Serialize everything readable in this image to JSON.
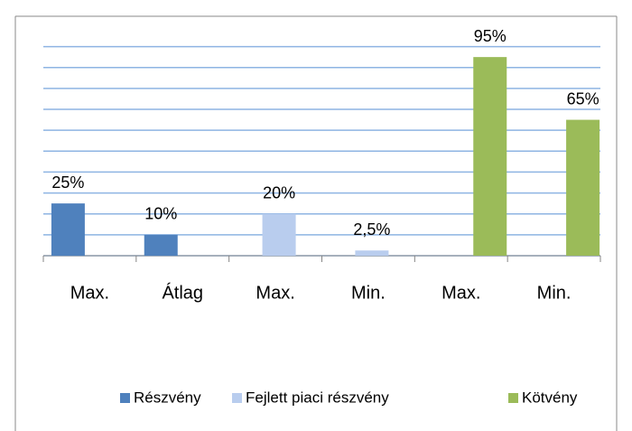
{
  "chart_data": {
    "type": "bar",
    "categories": [
      "Max.",
      "Átlag",
      "Max.",
      "Min.",
      "Max.",
      "Min."
    ],
    "series": [
      {
        "name": "Részvény",
        "color": "#4f81bd",
        "values": [
          25,
          10,
          null,
          null,
          null,
          null
        ],
        "value_labels": [
          "25%",
          "10%",
          null,
          null,
          null,
          null
        ]
      },
      {
        "name": "Fejlett piaci részvény",
        "color": "#b9cdee",
        "values": [
          null,
          null,
          20,
          2.5,
          null,
          null
        ],
        "value_labels": [
          null,
          null,
          "20%",
          "2,5%",
          null,
          null
        ]
      },
      {
        "name": "Kötvény",
        "color": "#9bbb59",
        "values": [
          null,
          null,
          null,
          null,
          95,
          65
        ],
        "value_labels": [
          null,
          null,
          null,
          null,
          "95%",
          "65%"
        ]
      }
    ],
    "ylim": [
      0,
      105
    ],
    "yticks": [
      0,
      10,
      20,
      30,
      40,
      50,
      60,
      70,
      80,
      90,
      100
    ],
    "grid": true,
    "legend": "bottom"
  }
}
